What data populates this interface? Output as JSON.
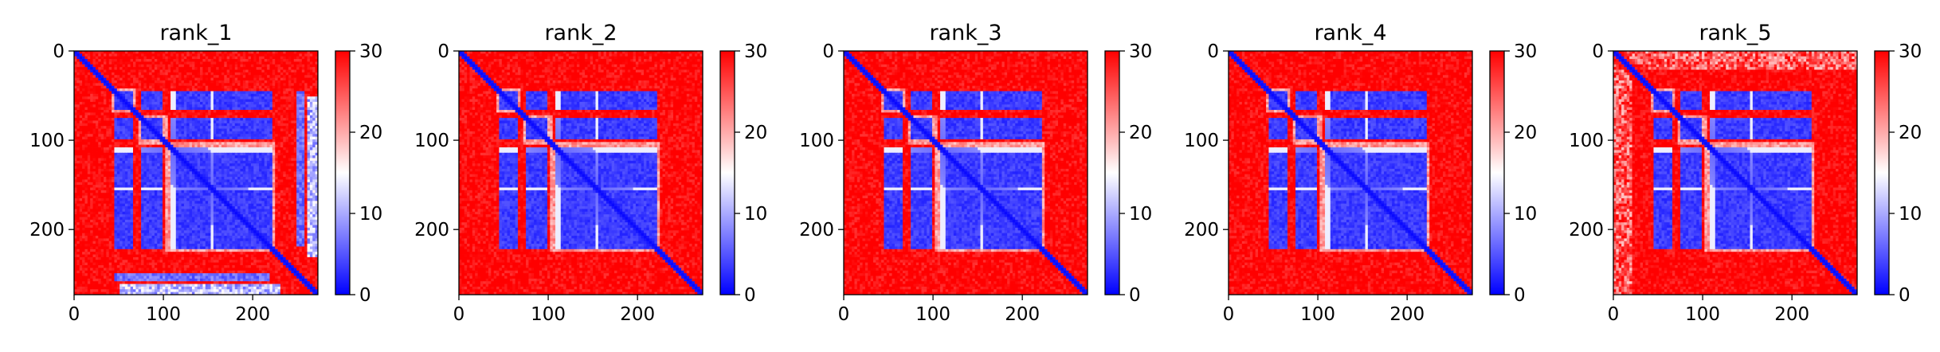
{
  "figure": {
    "panel_titles": [
      "rank_1",
      "rank_2",
      "rank_3",
      "rank_4",
      "rank_5"
    ]
  },
  "chart_data": [
    {
      "type": "heatmap",
      "title": "rank_1",
      "matrix_size": 273,
      "x_ticks": [
        0,
        100,
        200
      ],
      "y_ticks": [
        0,
        100,
        200
      ],
      "xlim": [
        0,
        273
      ],
      "ylim": [
        273,
        0
      ],
      "colorbar": {
        "range": [
          0,
          30
        ],
        "ticks": [
          0,
          10,
          20,
          30
        ],
        "colors": [
          "#0000ff",
          "#ffffff",
          "#ff0000"
        ]
      },
      "structure": {
        "low_blocks": [
          [
            45,
            65
          ],
          [
            75,
            100
          ],
          [
            107,
            275
          ]
        ],
        "high_pairs": [
          [
            [
              45,
              220
            ],
            [
              45,
              220
            ]
          ]
        ],
        "extra_low_columns": [
          [
            248,
            257
          ]
        ],
        "extra_low_rows": [
          [
            262,
            273
          ]
        ],
        "diagonal_band_width": 6
      }
    },
    {
      "type": "heatmap",
      "title": "rank_2",
      "matrix_size": 273,
      "x_ticks": [
        0,
        100,
        200
      ],
      "y_ticks": [
        0,
        100,
        200
      ],
      "xlim": [
        0,
        273
      ],
      "ylim": [
        273,
        0
      ],
      "colorbar": {
        "range": [
          0,
          30
        ],
        "ticks": [
          0,
          10,
          20,
          30
        ],
        "colors": [
          "#0000ff",
          "#ffffff",
          "#ff0000"
        ]
      },
      "structure": {
        "diagonal_band_width": 6
      }
    },
    {
      "type": "heatmap",
      "title": "rank_3",
      "matrix_size": 273,
      "x_ticks": [
        0,
        100,
        200
      ],
      "y_ticks": [
        0,
        100,
        200
      ],
      "xlim": [
        0,
        273
      ],
      "ylim": [
        273,
        0
      ],
      "colorbar": {
        "range": [
          0,
          30
        ],
        "ticks": [
          0,
          10,
          20,
          30
        ],
        "colors": [
          "#0000ff",
          "#ffffff",
          "#ff0000"
        ]
      },
      "structure": {
        "diagonal_band_width": 6
      }
    },
    {
      "type": "heatmap",
      "title": "rank_4",
      "matrix_size": 273,
      "x_ticks": [
        0,
        100,
        200
      ],
      "y_ticks": [
        0,
        100,
        200
      ],
      "xlim": [
        0,
        273
      ],
      "ylim": [
        273,
        0
      ],
      "colorbar": {
        "range": [
          0,
          30
        ],
        "ticks": [
          0,
          10,
          20,
          30
        ],
        "colors": [
          "#0000ff",
          "#ffffff",
          "#ff0000"
        ]
      },
      "structure": {
        "diagonal_band_width": 6
      }
    },
    {
      "type": "heatmap",
      "title": "rank_5",
      "matrix_size": 273,
      "x_ticks": [
        0,
        100,
        200
      ],
      "y_ticks": [
        0,
        100,
        200
      ],
      "xlim": [
        0,
        273
      ],
      "ylim": [
        273,
        0
      ],
      "colorbar": {
        "range": [
          0,
          30
        ],
        "ticks": [
          0,
          10,
          20,
          30
        ],
        "colors": [
          "#0000ff",
          "#ffffff",
          "#ff0000"
        ]
      },
      "structure": {
        "diagonal_band_width": 6
      }
    }
  ]
}
